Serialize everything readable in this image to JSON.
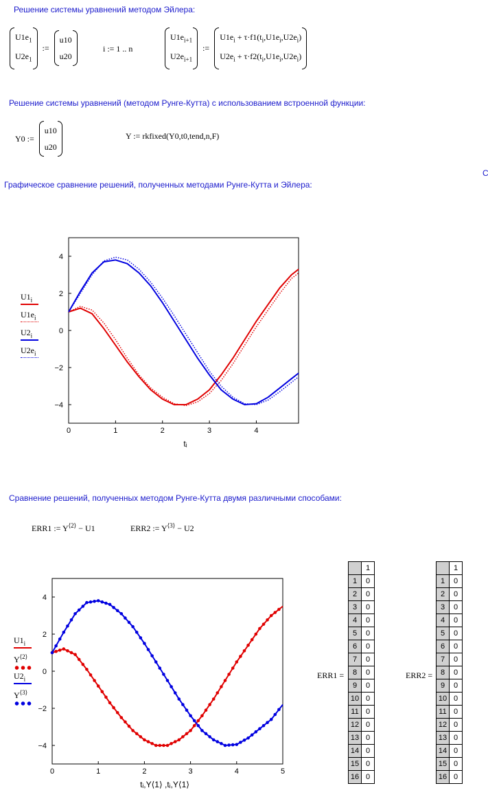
{
  "headings": {
    "euler": "Решение системы уравнений методом Эйлера:",
    "rk": "Решение системы уравнений (методом Рунге-Кутта) с использованием встроенной функции:",
    "graph_compare": "Графическое сравнение решений, полученных методами Рунге-Кутта и Эйлера:",
    "rk_compare": "Сравнение решений, полученных методом Рунге-Кутта двумя различными способами:"
  },
  "stray_char": "C",
  "euler_eq": {
    "u1e": "U1e",
    "u2e": "U2e",
    "sub1": "1",
    "u10": "u10",
    "u20": "u20",
    "range": "i := 1 .. n",
    "subi1": "i+1",
    "rhs1": "U1e",
    "rhs1b": " + τ·f1",
    "rhs2": "U2e",
    "rhs2b": " + τ·f2",
    "args": "t",
    "args_rest": ",U1e",
    "args_rest2": ",U2e",
    "sub_i": "i"
  },
  "rk_eq": {
    "y0": "Y0 :=",
    "u10": "u10",
    "u20": "u20",
    "call": "Y := rkfixed(Y0,t0,tend,n,F)"
  },
  "err_eq": {
    "err1": "ERR1 := Y",
    "err1_sup": "⟨2⟩",
    "err1_rest": " − U1",
    "err2": "ERR2 := Y",
    "err2_sup": "⟨3⟩",
    "err2_rest": " − U2"
  },
  "colors": {
    "red": "#e00000",
    "blue": "#0000e0",
    "heading": "#1a1acc"
  },
  "chart_data": [
    {
      "type": "line",
      "xlim": [
        0,
        4.9
      ],
      "ylim": [
        -5,
        5
      ],
      "xticks": [
        0,
        1,
        2,
        3,
        4,
        5
      ],
      "yticks": [
        -4,
        -2,
        0,
        2,
        4
      ],
      "xlabel": "t",
      "xlabel_sub": "i",
      "legend": [
        {
          "name": "U1",
          "sub": "i",
          "style": "solid",
          "color": "#e00000"
        },
        {
          "name": "U1e",
          "sub": "i",
          "style": "dotted",
          "color": "#e00000"
        },
        {
          "name": "U2",
          "sub": "i",
          "style": "solid",
          "color": "#0000e0"
        },
        {
          "name": "U2e",
          "sub": "i",
          "style": "dotted",
          "color": "#0000e0"
        }
      ],
      "series": [
        {
          "name": "U1",
          "x": [
            0,
            0.25,
            0.5,
            0.75,
            1,
            1.25,
            1.5,
            1.75,
            2,
            2.25,
            2.5,
            2.75,
            3,
            3.25,
            3.5,
            3.75,
            4,
            4.25,
            4.5,
            4.75,
            4.9
          ],
          "values": [
            1,
            1.2,
            0.9,
            0.1,
            -0.8,
            -1.7,
            -2.5,
            -3.2,
            -3.7,
            -4.0,
            -4.0,
            -3.7,
            -3.2,
            -2.4,
            -1.5,
            -0.5,
            0.5,
            1.4,
            2.3,
            3.0,
            3.3
          ]
        },
        {
          "name": "U1e",
          "x": [
            0,
            0.25,
            0.5,
            0.75,
            1,
            1.25,
            1.5,
            1.75,
            2,
            2.25,
            2.5,
            2.75,
            3,
            3.25,
            3.5,
            3.75,
            4,
            4.25,
            4.5,
            4.75,
            4.9
          ],
          "values": [
            1,
            1.3,
            1.1,
            0.4,
            -0.5,
            -1.5,
            -2.4,
            -3.1,
            -3.6,
            -3.95,
            -4.05,
            -3.85,
            -3.4,
            -2.7,
            -1.8,
            -0.8,
            0.2,
            1.1,
            2.0,
            2.8,
            3.1
          ]
        },
        {
          "name": "U2",
          "x": [
            0,
            0.25,
            0.5,
            0.75,
            1,
            1.25,
            1.5,
            1.75,
            2,
            2.25,
            2.5,
            2.75,
            3,
            3.25,
            3.5,
            3.75,
            4,
            4.25,
            4.5,
            4.75,
            4.9
          ],
          "values": [
            1,
            2.1,
            3.1,
            3.7,
            3.8,
            3.6,
            3.1,
            2.4,
            1.5,
            0.5,
            -0.5,
            -1.5,
            -2.4,
            -3.2,
            -3.7,
            -4.0,
            -3.95,
            -3.6,
            -3.1,
            -2.6,
            -2.3
          ]
        },
        {
          "name": "U2e",
          "x": [
            0,
            0.25,
            0.5,
            0.75,
            1,
            1.25,
            1.5,
            1.75,
            2,
            2.25,
            2.5,
            2.75,
            3,
            3.25,
            3.5,
            3.75,
            4,
            4.25,
            4.5,
            4.75,
            4.9
          ],
          "values": [
            1,
            2.0,
            3.0,
            3.75,
            3.95,
            3.8,
            3.3,
            2.6,
            1.75,
            0.8,
            -0.2,
            -1.2,
            -2.2,
            -3.0,
            -3.6,
            -3.95,
            -4.0,
            -3.75,
            -3.3,
            -2.8,
            -2.5
          ]
        }
      ]
    },
    {
      "type": "line",
      "xlim": [
        0,
        5
      ],
      "ylim": [
        -5,
        5
      ],
      "xticks": [
        0,
        1,
        2,
        3,
        4,
        5
      ],
      "yticks": [
        -4,
        -2,
        0,
        2,
        4
      ],
      "xlabel": "t",
      "xlabel_full": "t_i, Y⟨1⟩, t_i, Y⟨1⟩",
      "legend": [
        {
          "name": "U1",
          "sub": "i",
          "style": "solid",
          "color": "#e00000"
        },
        {
          "name": "Y",
          "sup": "⟨2⟩",
          "style": "dots",
          "color": "#e00000"
        },
        {
          "name": "U2",
          "sub": "i",
          "style": "solid",
          "color": "#0000e0"
        },
        {
          "name": "Y",
          "sup": "⟨3⟩",
          "style": "dots",
          "color": "#0000e0"
        }
      ],
      "series": [
        {
          "name": "U1",
          "x": [
            0,
            0.25,
            0.5,
            0.75,
            1,
            1.25,
            1.5,
            1.75,
            2,
            2.25,
            2.5,
            2.75,
            3,
            3.25,
            3.5,
            3.75,
            4,
            4.25,
            4.5,
            4.75,
            5
          ],
          "values": [
            1,
            1.2,
            0.9,
            0.1,
            -0.8,
            -1.7,
            -2.5,
            -3.2,
            -3.7,
            -4.0,
            -4.0,
            -3.7,
            -3.2,
            -2.4,
            -1.5,
            -0.5,
            0.5,
            1.4,
            2.3,
            3.0,
            3.5
          ]
        },
        {
          "name": "U2",
          "x": [
            0,
            0.25,
            0.5,
            0.75,
            1,
            1.25,
            1.5,
            1.75,
            2,
            2.25,
            2.5,
            2.75,
            3,
            3.25,
            3.5,
            3.75,
            4,
            4.25,
            4.5,
            4.75,
            5
          ],
          "values": [
            1,
            2.1,
            3.1,
            3.7,
            3.8,
            3.6,
            3.1,
            2.4,
            1.5,
            0.5,
            -0.5,
            -1.5,
            -2.4,
            -3.2,
            -3.7,
            -4.0,
            -3.95,
            -3.6,
            -3.1,
            -2.6,
            -1.8
          ]
        }
      ]
    }
  ],
  "tables": {
    "err1": {
      "label": "ERR1 =",
      "col_header": "1",
      "rows": [
        "1",
        "2",
        "3",
        "4",
        "5",
        "6",
        "7",
        "8",
        "9",
        "10",
        "11",
        "12",
        "13",
        "14",
        "15",
        "16"
      ],
      "values": [
        "0",
        "0",
        "0",
        "0",
        "0",
        "0",
        "0",
        "0",
        "0",
        "0",
        "0",
        "0",
        "0",
        "0",
        "0",
        "0"
      ]
    },
    "err2": {
      "label": "ERR2 =",
      "col_header": "1",
      "rows": [
        "1",
        "2",
        "3",
        "4",
        "5",
        "6",
        "7",
        "8",
        "9",
        "10",
        "11",
        "12",
        "13",
        "14",
        "15",
        "16"
      ],
      "values": [
        "0",
        "0",
        "0",
        "0",
        "0",
        "0",
        "0",
        "0",
        "0",
        "0",
        "0",
        "0",
        "0",
        "0",
        "0",
        "0"
      ]
    }
  }
}
